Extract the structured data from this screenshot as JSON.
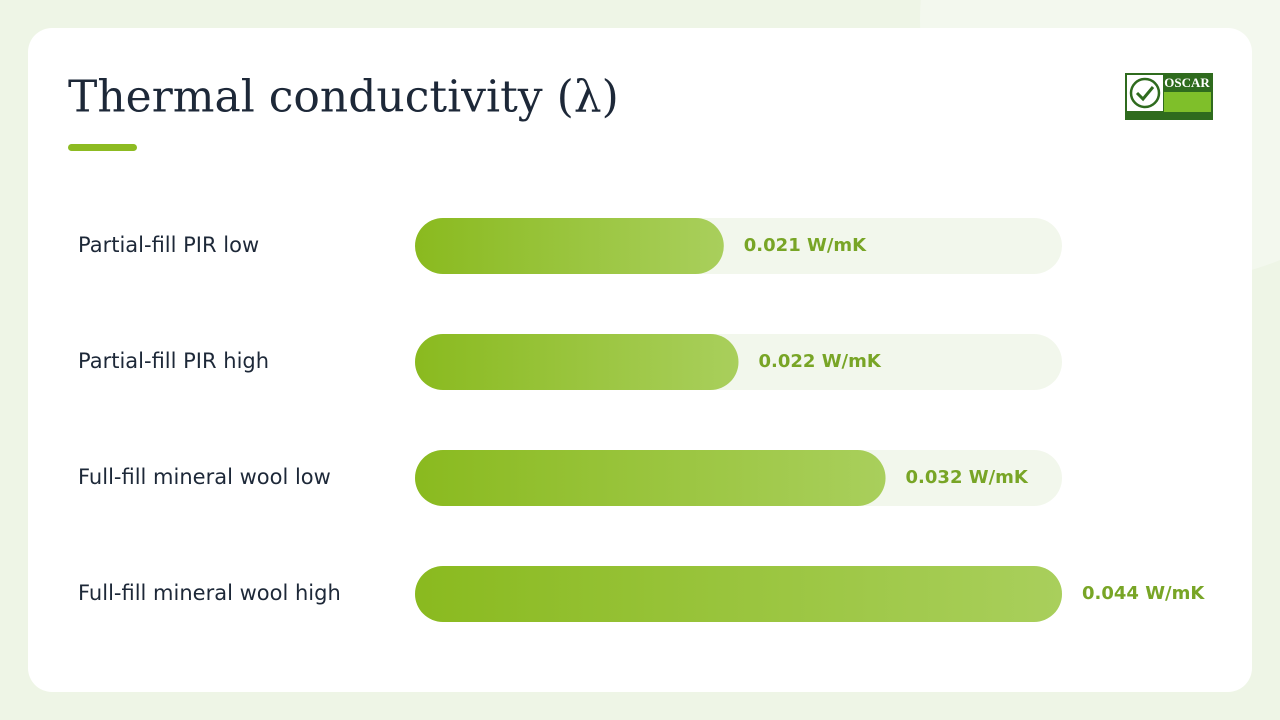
{
  "chart_data": {
    "type": "bar",
    "orientation": "horizontal",
    "title": "Thermal conductivity (λ)",
    "logo": "OSCAR",
    "categories": [
      "Partial-fill PIR low",
      "Partial-fill PIR high",
      "Full-fill mineral wool low",
      "Full-fill mineral wool high"
    ],
    "values": [
      0.021,
      0.022,
      0.032,
      0.044
    ],
    "value_labels": [
      "0.021 W/mK",
      "0.022 W/mK",
      "0.032 W/mK",
      "0.044 W/mK"
    ],
    "xlim": [
      0,
      0.044
    ],
    "color": "#8dbb22"
  }
}
